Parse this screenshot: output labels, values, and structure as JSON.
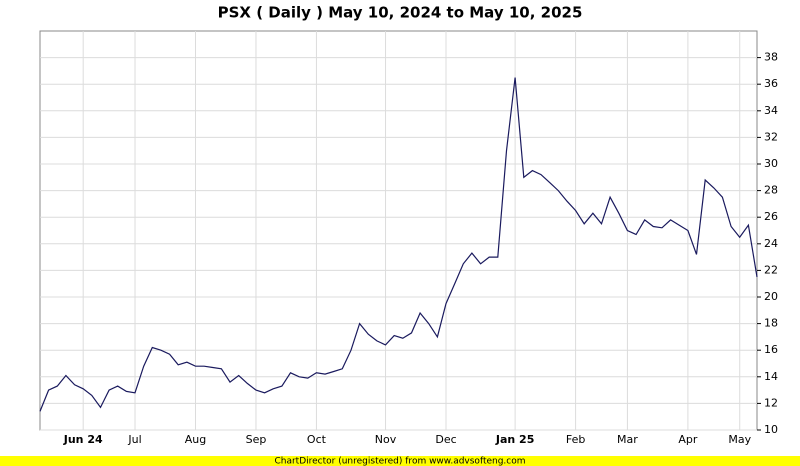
{
  "chart_data": {
    "type": "line",
    "title": "PSX ( Daily ) May 10, 2024 to May 10, 2025",
    "footer": "ChartDirector (unregistered) from www.advsofteng.com",
    "categories": [
      null,
      null,
      null,
      null,
      null,
      "Jun 24",
      null,
      null,
      null,
      null,
      null,
      "Jul",
      null,
      null,
      null,
      null,
      null,
      null,
      "Aug",
      null,
      null,
      null,
      null,
      null,
      null,
      "Sep",
      null,
      null,
      null,
      null,
      null,
      null,
      "Oct",
      null,
      null,
      null,
      null,
      null,
      null,
      null,
      "Nov",
      null,
      null,
      null,
      null,
      null,
      null,
      "Dec",
      null,
      null,
      null,
      null,
      null,
      null,
      null,
      "Jan 25",
      null,
      null,
      null,
      null,
      null,
      null,
      "Feb",
      null,
      null,
      null,
      null,
      null,
      "Mar",
      null,
      null,
      null,
      null,
      null,
      null,
      "Apr",
      null,
      null,
      null,
      null,
      null,
      "May",
      null,
      null
    ],
    "series": [
      {
        "name": "PSX",
        "color": "#1a1a5e",
        "values": [
          11.4,
          13.0,
          13.3,
          14.1,
          13.4,
          13.1,
          12.6,
          11.7,
          13.0,
          13.3,
          12.9,
          12.8,
          14.8,
          16.2,
          16.0,
          15.7,
          14.9,
          15.1,
          14.8,
          14.8,
          14.7,
          14.6,
          13.6,
          14.1,
          13.5,
          13.0,
          12.8,
          13.1,
          13.3,
          14.3,
          14.0,
          13.9,
          14.3,
          14.2,
          14.4,
          14.6,
          16.0,
          18.0,
          17.2,
          16.7,
          16.4,
          17.1,
          16.9,
          17.3,
          18.8,
          18.0,
          17.0,
          19.5,
          21.0,
          22.5,
          23.3,
          22.5,
          23.0,
          23.0,
          31.0,
          36.5,
          29.0,
          29.5,
          29.2,
          28.6,
          28.0,
          27.2,
          26.5,
          25.5,
          26.3,
          25.5,
          27.5,
          26.3,
          25.0,
          24.7,
          25.8,
          25.3,
          25.2,
          25.8,
          25.4,
          25.0,
          23.2,
          28.8,
          28.2,
          27.5,
          25.3,
          24.5,
          25.4,
          21.5
        ]
      }
    ],
    "ylim": [
      10,
      40
    ],
    "yticks": [
      10,
      12,
      14,
      16,
      18,
      20,
      22,
      24,
      26,
      28,
      30,
      32,
      34,
      36,
      38
    ],
    "grid": true
  }
}
